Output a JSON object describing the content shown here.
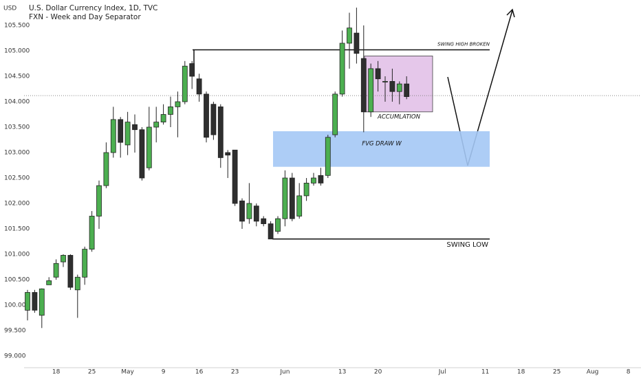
{
  "chart_data": {
    "type": "candlestick",
    "title": "U.S. Dollar Currency Index, 1D, TVC",
    "subtitle": "FXN - Week and Day Separator",
    "y_axis_label": "USD",
    "ylim": [
      98.77,
      106.0
    ],
    "xlim": [
      -0.48,
      85.77
    ],
    "yticks": [
      {
        "value": 99.0,
        "label": "99.000"
      },
      {
        "value": 99.5,
        "label": "99.500"
      },
      {
        "value": 100.0,
        "label": "100.000"
      },
      {
        "value": 100.5,
        "label": "100.500"
      },
      {
        "value": 101.0,
        "label": "101.000"
      },
      {
        "value": 101.5,
        "label": "101.500"
      },
      {
        "value": 102.0,
        "label": "102.000"
      },
      {
        "value": 102.5,
        "label": "102.500"
      },
      {
        "value": 103.0,
        "label": "103.000"
      },
      {
        "value": 103.5,
        "label": "103.500"
      },
      {
        "value": 104.0,
        "label": "104.000"
      },
      {
        "value": 104.5,
        "label": "104.500"
      },
      {
        "value": 105.0,
        "label": "105.000"
      },
      {
        "value": 105.5,
        "label": "105.500"
      }
    ],
    "xticks": [
      {
        "value": 4,
        "label": "18"
      },
      {
        "value": 9,
        "label": "25"
      },
      {
        "value": 14,
        "label": "May"
      },
      {
        "value": 19,
        "label": "9"
      },
      {
        "value": 24,
        "label": "16"
      },
      {
        "value": 29,
        "label": "23"
      },
      {
        "value": 36,
        "label": "Jun"
      },
      {
        "value": 44,
        "label": "13"
      },
      {
        "value": 49,
        "label": "20"
      },
      {
        "value": 58,
        "label": "Jul"
      },
      {
        "value": 64,
        "label": "11"
      },
      {
        "value": 69,
        "label": "18"
      },
      {
        "value": 74,
        "label": "25"
      },
      {
        "value": 79,
        "label": "Aug"
      },
      {
        "value": 84,
        "label": "8"
      }
    ],
    "up_color": "#4caf50",
    "down_color": "#2f2f2f",
    "open": [
      99.9,
      100.25,
      99.8,
      100.4,
      100.55,
      100.85,
      100.98,
      100.3,
      100.55,
      101.1,
      101.75,
      102.35,
      103.0,
      103.65,
      103.15,
      103.55,
      103.45,
      102.7,
      103.5,
      103.6,
      103.75,
      103.9,
      104.0,
      104.75,
      104.45,
      104.15,
      103.95,
      103.9,
      103.0,
      103.05,
      102.05,
      101.7,
      101.95,
      101.7,
      101.6,
      101.45,
      101.7,
      102.5,
      101.75,
      102.15,
      102.4,
      102.55,
      102.55,
      103.35,
      104.15,
      105.15,
      105.35,
      104.85,
      103.8,
      104.65,
      104.4,
      104.4,
      104.2,
      104.35
    ],
    "high": [
      100.3,
      100.3,
      100.33,
      100.55,
      100.9,
      101.0,
      101.0,
      100.6,
      101.15,
      101.85,
      102.45,
      103.2,
      103.9,
      103.7,
      103.8,
      103.75,
      103.5,
      103.9,
      103.9,
      103.95,
      104.1,
      104.2,
      104.8,
      104.8,
      104.55,
      104.2,
      104.0,
      103.95,
      103.05,
      103.05,
      102.1,
      102.4,
      102.0,
      101.75,
      101.65,
      101.75,
      102.65,
      102.6,
      102.4,
      102.5,
      102.6,
      102.7,
      103.35,
      104.2,
      105.4,
      105.75,
      105.85,
      105.5,
      104.75,
      104.8,
      104.5,
      104.65,
      104.4,
      104.5
    ],
    "low": [
      99.7,
      99.85,
      99.55,
      100.4,
      100.5,
      100.75,
      100.3,
      99.75,
      100.4,
      101.05,
      101.5,
      102.3,
      102.9,
      102.9,
      102.95,
      103.0,
      102.45,
      102.65,
      103.2,
      103.55,
      103.5,
      103.3,
      103.95,
      104.25,
      104.0,
      103.2,
      103.25,
      102.7,
      102.5,
      101.95,
      101.5,
      101.6,
      101.55,
      101.55,
      101.3,
      101.4,
      101.55,
      101.65,
      101.7,
      102.05,
      102.35,
      102.35,
      102.5,
      103.3,
      104.1,
      104.65,
      104.75,
      103.4,
      103.7,
      104.2,
      104.0,
      104.0,
      103.95,
      104.05
    ],
    "close": [
      100.25,
      99.9,
      100.32,
      100.48,
      100.82,
      100.98,
      100.35,
      100.55,
      101.1,
      101.75,
      102.35,
      103.0,
      103.65,
      103.2,
      103.6,
      103.45,
      102.5,
      103.5,
      103.6,
      103.75,
      103.9,
      104.0,
      104.7,
      104.5,
      104.15,
      103.3,
      103.35,
      102.9,
      102.95,
      102.0,
      101.65,
      102.0,
      101.65,
      101.6,
      101.3,
      101.7,
      102.5,
      101.7,
      102.15,
      102.4,
      102.5,
      102.4,
      103.3,
      104.15,
      105.15,
      105.45,
      104.95,
      103.8,
      104.65,
      104.45,
      104.4,
      104.2,
      104.35,
      104.1
    ],
    "price_line": 104.12,
    "swing_high": {
      "value": 105.02,
      "label": "SWING HIGH BROKEN"
    },
    "swing_low": {
      "value": 101.3,
      "label": "SWING LOW"
    },
    "accumulation": {
      "top": 104.9,
      "bottom": 103.8,
      "label": "ACCUMLATION",
      "color": "#e1bee7"
    },
    "fvg": {
      "top": 103.42,
      "bottom": 102.72,
      "label": "FVG DRAW W",
      "color": "#a4c8f5"
    }
  }
}
